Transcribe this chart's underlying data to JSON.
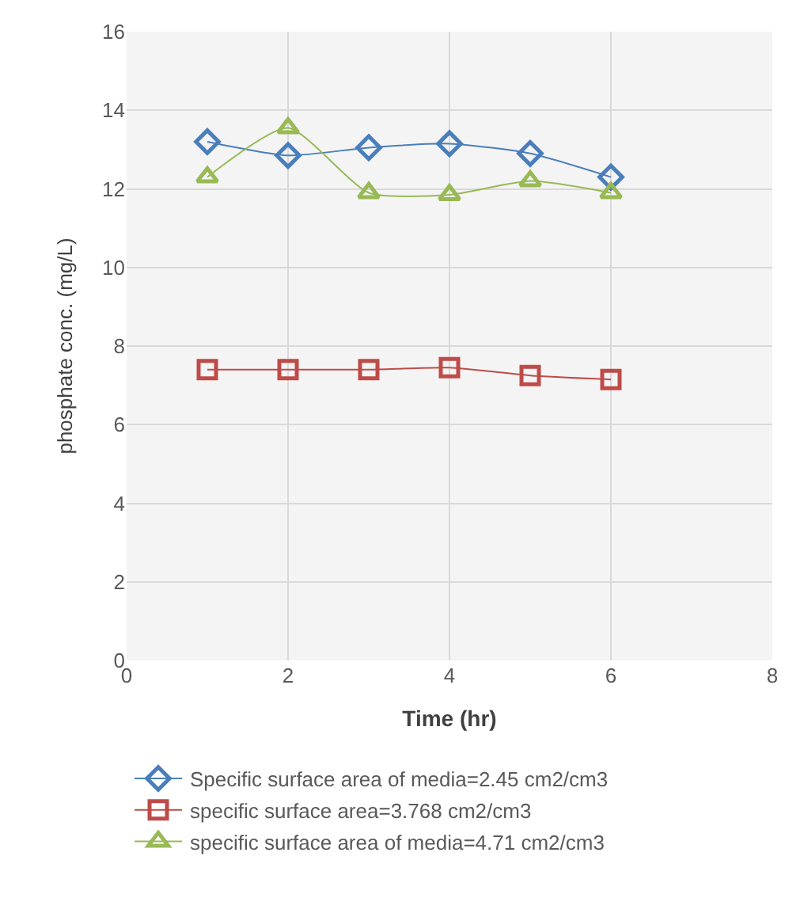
{
  "chart_data": {
    "type": "line",
    "xlabel": "Time (hr)",
    "ylabel": "phosphate conc. (mg/L)",
    "x": [
      1,
      2,
      3,
      4,
      5,
      6
    ],
    "series": [
      {
        "name": "Specific surface area of media=2.45 cm2/cm3",
        "color": "#4a7ebb",
        "marker": "diamond",
        "values": [
          13.2,
          12.85,
          13.05,
          13.15,
          12.9,
          12.3
        ]
      },
      {
        "name": "specific surface area=3.768 cm2/cm3",
        "color": "#be4b48",
        "marker": "square",
        "values": [
          7.4,
          7.4,
          7.4,
          7.45,
          7.25,
          7.15
        ]
      },
      {
        "name": "specific surface area of media=4.71 cm2/cm3",
        "color": "#98b954",
        "marker": "triangle",
        "values": [
          12.3,
          13.55,
          11.9,
          11.85,
          12.2,
          11.9
        ]
      }
    ],
    "xlim": [
      0,
      8
    ],
    "xticks": [
      0,
      2,
      4,
      6,
      8
    ],
    "ylim": [
      0,
      16
    ],
    "yticks": [
      0,
      2,
      4,
      6,
      8,
      10,
      12,
      14,
      16
    ],
    "grid": true,
    "legend": "bottom"
  }
}
